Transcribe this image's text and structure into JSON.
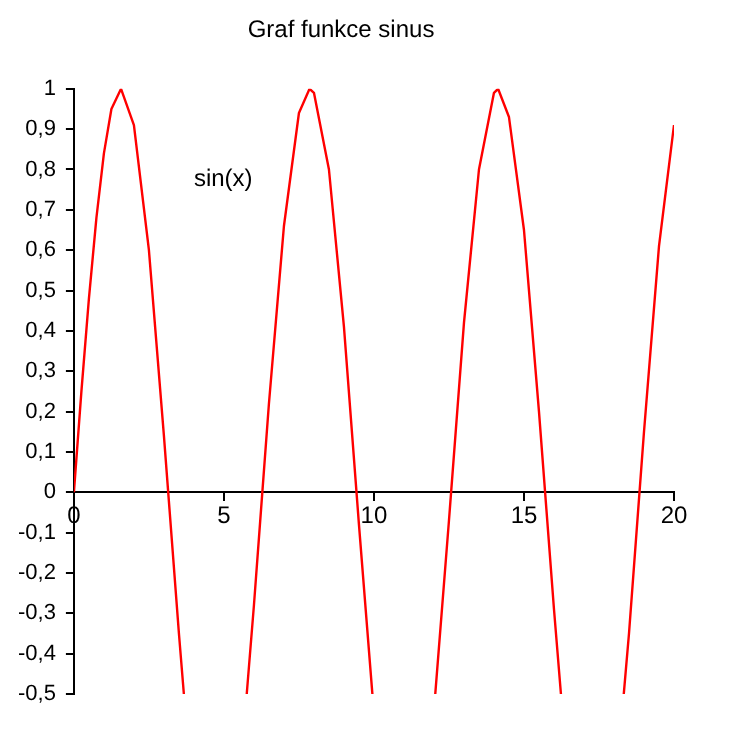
{
  "chart_data": {
    "type": "line",
    "title": "Graf funkce sinus",
    "series": [
      {
        "color": "#ff0000",
        "x": [
          0,
          0.25,
          0.5,
          0.75,
          1,
          1.25,
          1.571,
          2,
          2.5,
          3,
          3.5,
          3.665,
          4.7,
          5.76,
          6,
          6.5,
          7,
          7.5,
          7.854,
          8,
          8.5,
          9,
          9.5,
          9.948,
          11,
          12.043,
          12.5,
          13,
          13.5,
          14,
          14.137,
          14.5,
          15,
          15.5,
          16,
          16.232,
          17.3,
          18.326,
          18.5,
          19,
          19.5,
          20
        ],
        "values": [
          0,
          0.25,
          0.48,
          0.68,
          0.84,
          0.95,
          1,
          0.91,
          0.6,
          0.14,
          -0.35,
          -0.5,
          null,
          -0.5,
          -0.28,
          0.22,
          0.66,
          0.94,
          1,
          0.99,
          0.8,
          0.41,
          -0.08,
          -0.5,
          null,
          -0.5,
          -0.07,
          0.42,
          0.8,
          0.99,
          1,
          0.93,
          0.65,
          0.2,
          -0.29,
          -0.5,
          null,
          -0.5,
          -0.35,
          0.15,
          0.61,
          0.91
        ]
      }
    ],
    "annotations": [
      "sin(x)"
    ],
    "xlim": [
      0,
      20
    ],
    "xticks": [
      0,
      5,
      10,
      15,
      20
    ],
    "ylim": [
      -0.5,
      1
    ],
    "yticks": [
      {
        "value": -0.5,
        "label": "-0,5"
      },
      {
        "value": -0.4,
        "label": "-0,4"
      },
      {
        "value": -0.3,
        "label": "-0,3"
      },
      {
        "value": -0.2,
        "label": "-0,2"
      },
      {
        "value": -0.1,
        "label": "-0,1"
      },
      0,
      {
        "value": 0.1,
        "label": "0,1"
      },
      {
        "value": 0.2,
        "label": "0,2"
      },
      {
        "value": 0.3,
        "label": "0,3"
      },
      {
        "value": 0.4,
        "label": "0,4"
      },
      {
        "value": 0.5,
        "label": "0,5"
      },
      {
        "value": 0.6,
        "label": "0,6"
      },
      {
        "value": 0.7,
        "label": "0,7"
      },
      {
        "value": 0.8,
        "label": "0,8"
      },
      {
        "value": 0.9,
        "label": "0,9"
      },
      1
    ],
    "grid": false,
    "legend": false,
    "marker": "none",
    "line_style": "solid"
  }
}
